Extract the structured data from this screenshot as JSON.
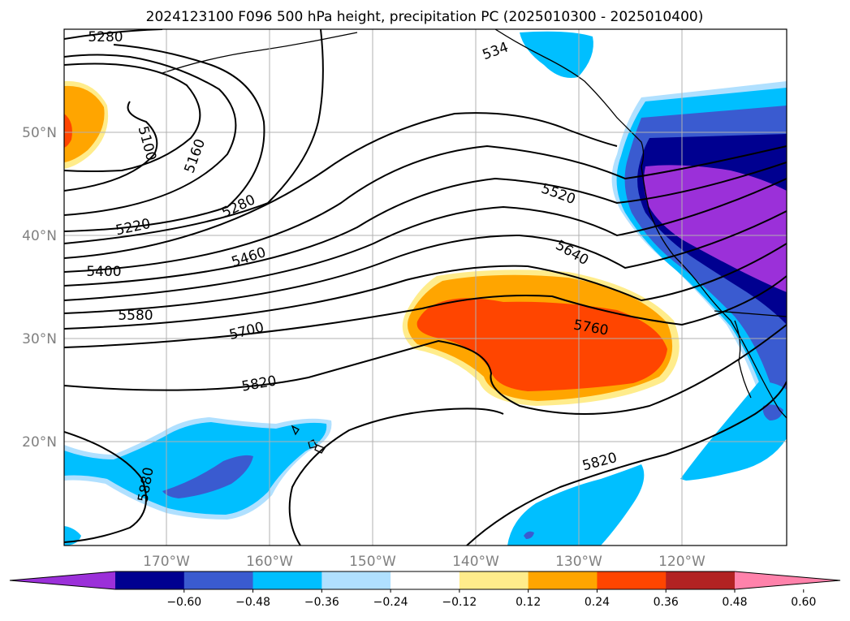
{
  "title": "2024123100 F096 500 hPa height, precipitation PC (2025010300 - 2025010400)",
  "map": {
    "lat_labels": [
      "50°N",
      "40°N",
      "30°N",
      "20°N"
    ],
    "lon_labels": [
      "170°W",
      "160°W",
      "150°W",
      "140°W",
      "130°W",
      "120°W"
    ],
    "contour_labels": [
      "5280",
      "5100",
      "5160",
      "5220",
      "5280",
      "5400",
      "5460",
      "5580",
      "5700",
      "5820",
      "5880",
      "534",
      "5520",
      "5640",
      "5760",
      "5820"
    ]
  },
  "colorbar": {
    "ticks": [
      "−0.60",
      "−0.48",
      "−0.36",
      "−0.24",
      "−0.12",
      "0.12",
      "0.24",
      "0.36",
      "0.48",
      "0.60"
    ],
    "colors": [
      "#9b30d9",
      "#000090",
      "#3a5bd0",
      "#00bfff",
      "#b0e0ff",
      "#ffffff",
      "#ffec8b",
      "#ffa500",
      "#ff4500",
      "#b22222",
      "#ff82ab"
    ]
  }
}
